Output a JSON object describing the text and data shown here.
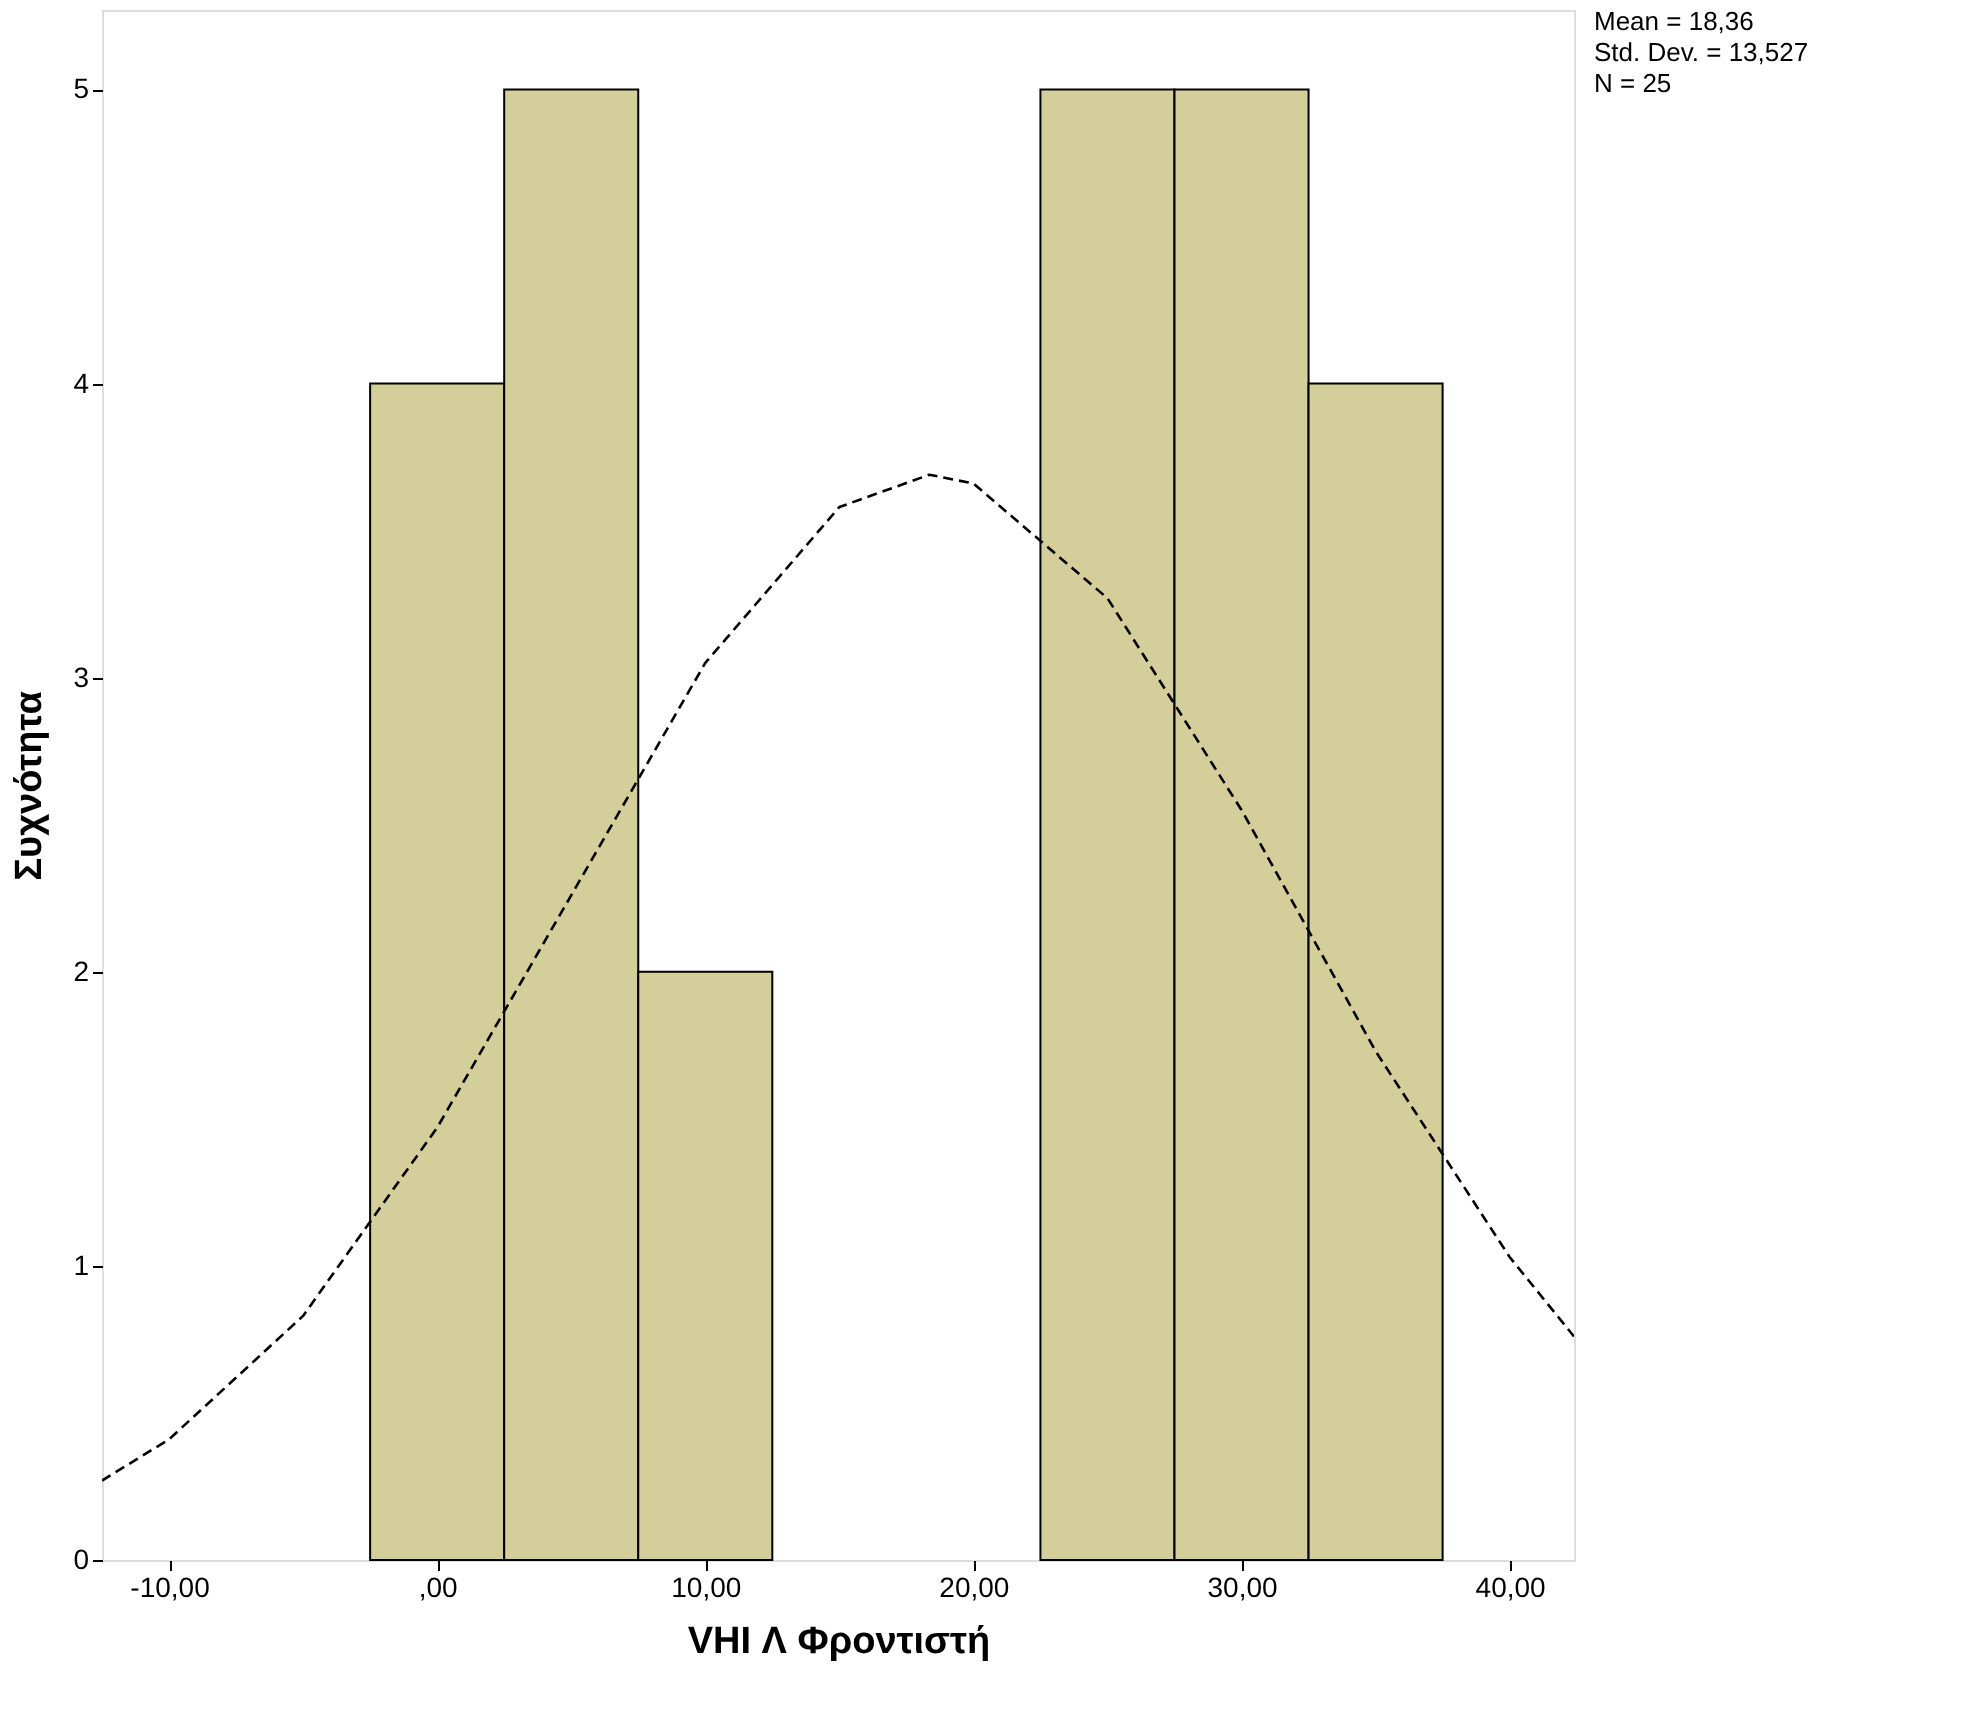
{
  "chart_data": {
    "type": "histogram",
    "xlabel": "VHI Λ Φροντιστή",
    "ylabel": "Συχνότητα",
    "bins": [
      -2.5,
      2.5,
      7.5,
      12.5,
      17.5,
      22.5,
      27.5,
      32.5,
      37.5
    ],
    "values": [
      4,
      5,
      2,
      0,
      0,
      5,
      5,
      4
    ],
    "color": "#d3ce9a",
    "xlim": [
      -12.5,
      42.4
    ],
    "ylim": [
      0,
      5.27
    ],
    "xticks": [
      {
        "value": -10,
        "label": "-10,00"
      },
      {
        "value": 0,
        "label": ",00"
      },
      {
        "value": 10,
        "label": "10,00"
      },
      {
        "value": 20,
        "label": "20,00"
      },
      {
        "value": 30,
        "label": "30,00"
      },
      {
        "value": 40,
        "label": "40,00"
      }
    ],
    "yticks": [
      0,
      1,
      2,
      3,
      4,
      5
    ],
    "grid": false,
    "annotations": [
      "Mean = 18,36",
      "Std. Dev. = 13,527",
      "N = 25"
    ],
    "series": [
      {
        "type": "line",
        "color": "#000000",
        "line_style": "dashed",
        "x": [
          -12.5,
          -10,
          -5,
          0,
          5,
          10,
          15,
          18.36,
          20,
          25,
          30,
          35,
          40,
          42.4
        ],
        "values": [
          0.27,
          0.41,
          0.83,
          1.47,
          2.26,
          3.05,
          3.58,
          3.69,
          3.66,
          3.27,
          2.55,
          1.73,
          1.03,
          0.76
        ]
      }
    ]
  }
}
